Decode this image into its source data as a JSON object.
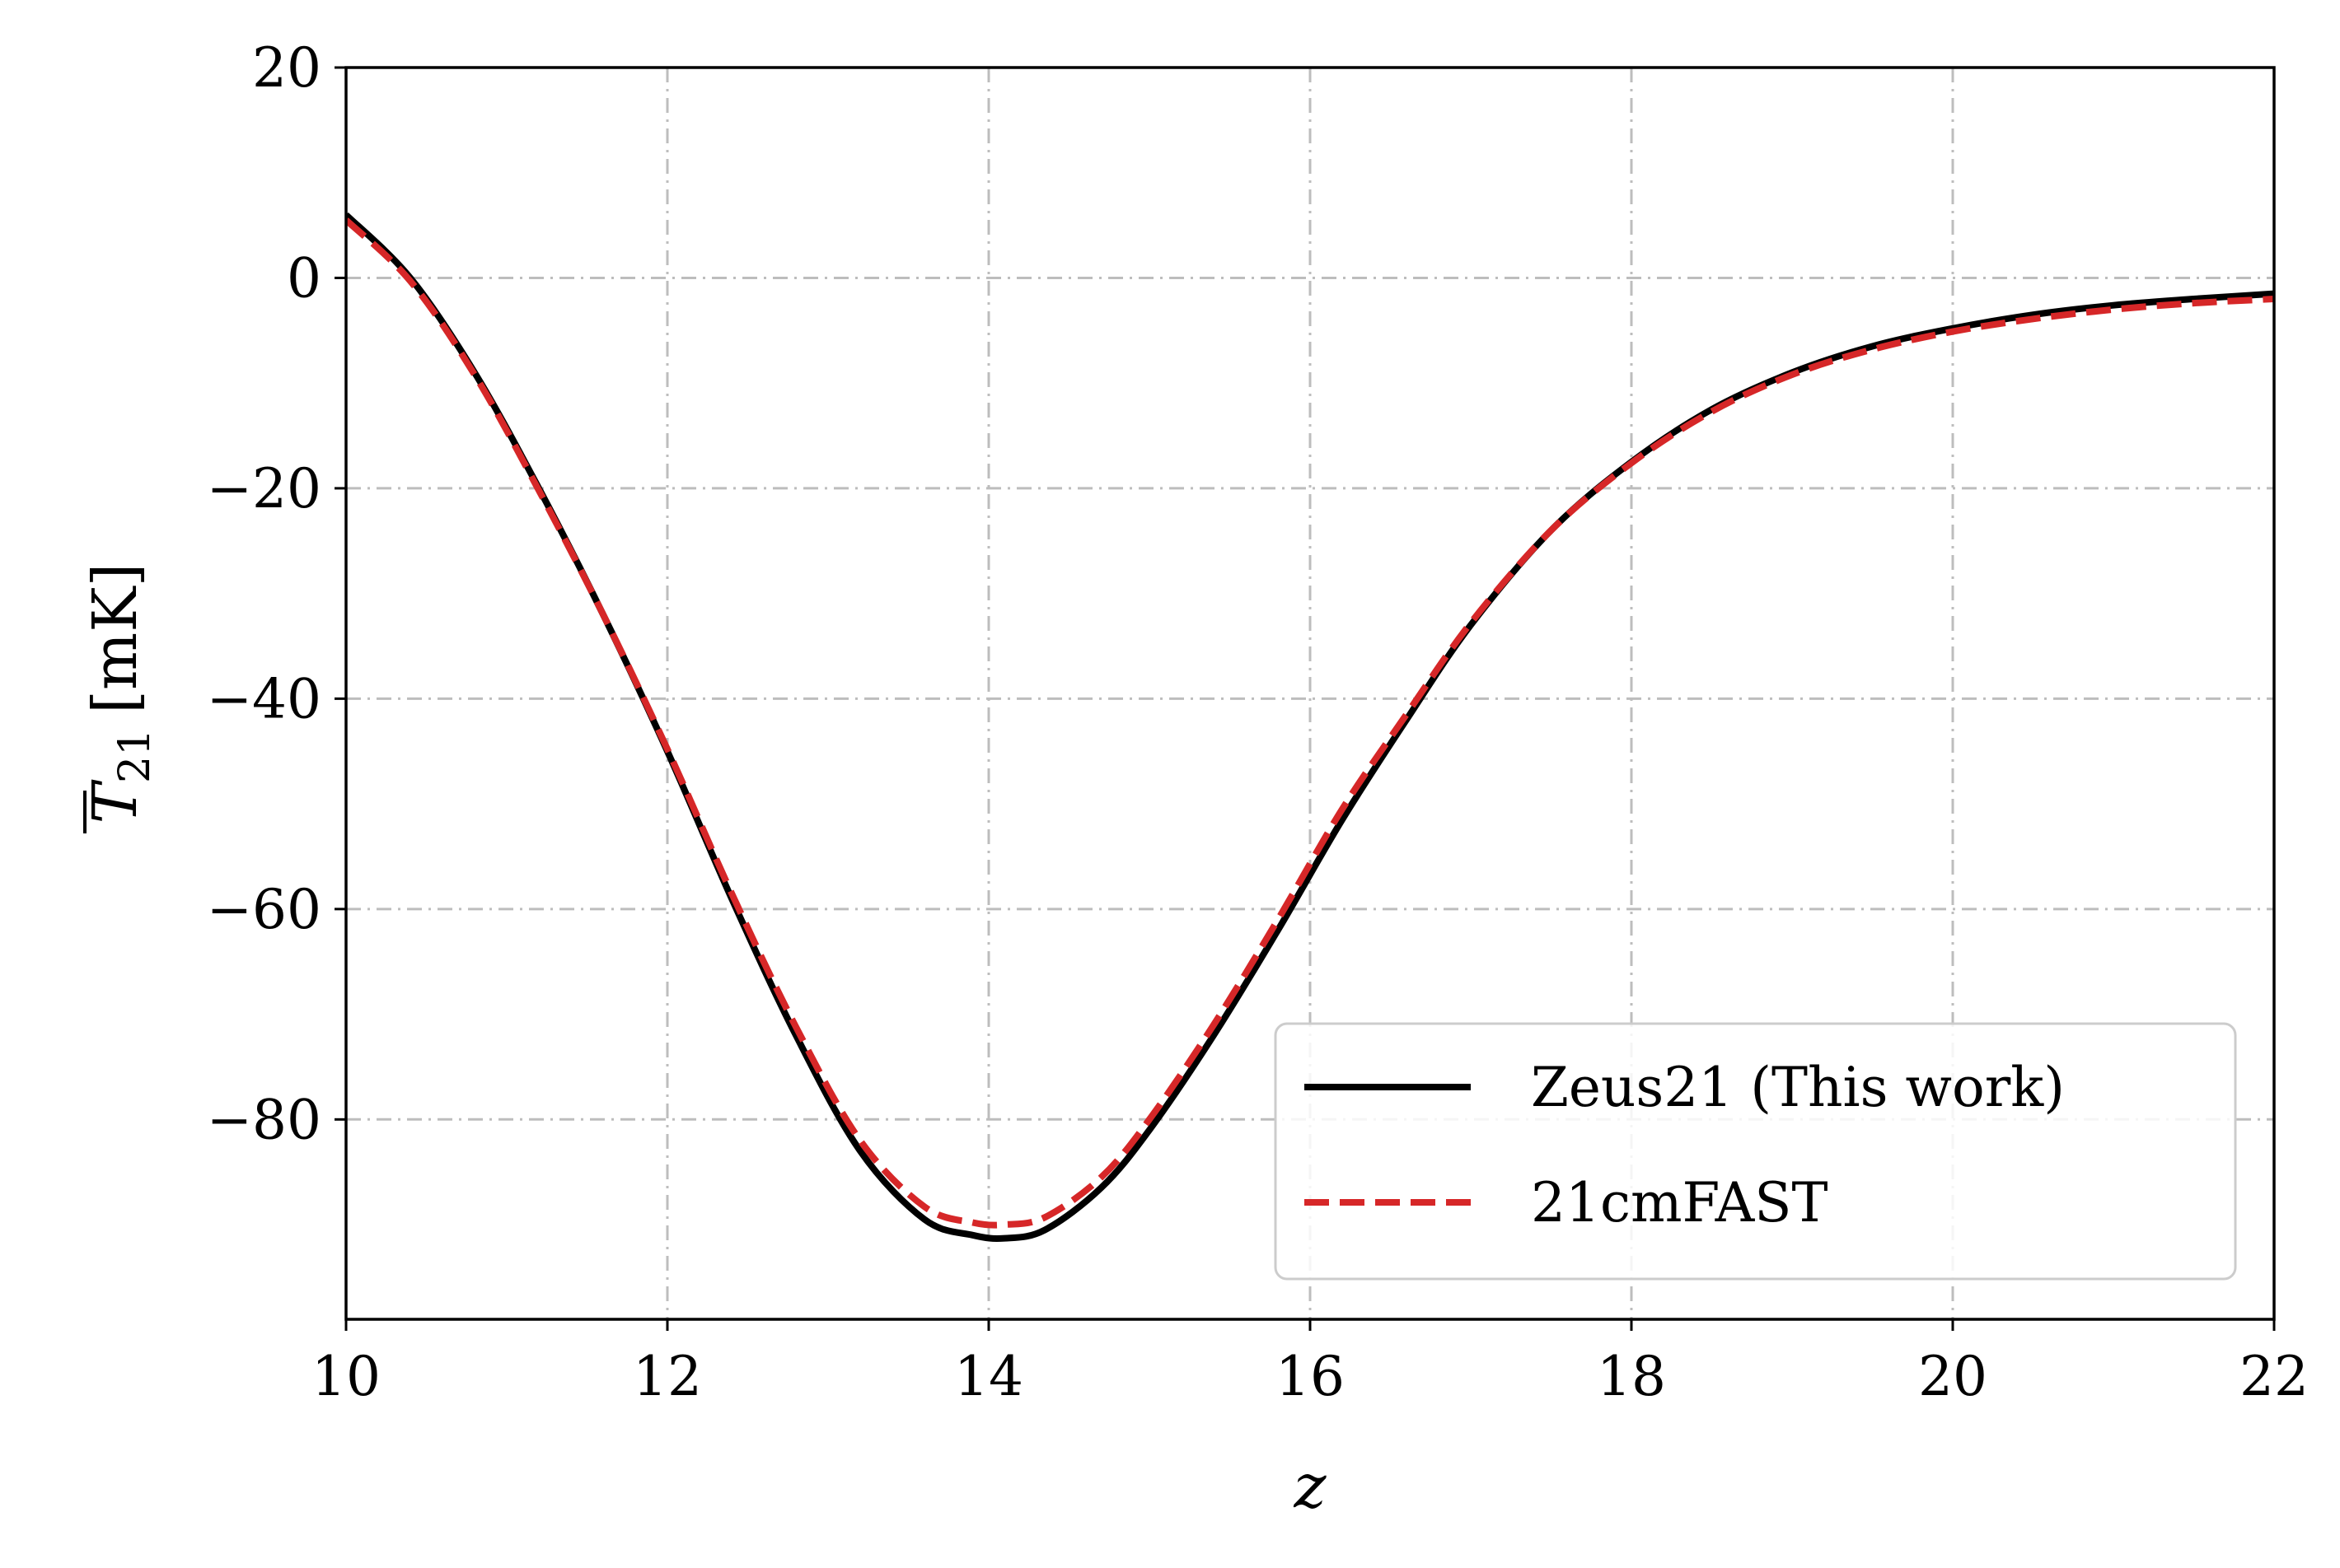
{
  "chart_data": {
    "type": "line",
    "title": "",
    "xlabel": "z",
    "ylabel_main": "T",
    "ylabel_sub": "21",
    "ylabel_unit": "[mK]",
    "xlim": [
      10,
      22
    ],
    "ylim": [
      -99,
      20
    ],
    "xticks": [
      10,
      12,
      14,
      16,
      18,
      20,
      22
    ],
    "xtick_labels": [
      "10",
      "12",
      "14",
      "16",
      "18",
      "20",
      "22"
    ],
    "yticks": [
      20,
      0,
      -20,
      -40,
      -60,
      -80
    ],
    "ytick_labels": [
      "20",
      "0",
      "−20",
      "−40",
      "−60",
      "−80"
    ],
    "grid": true,
    "legend_position": "lower-right",
    "series": [
      {
        "name": "Zeus21 (This work)",
        "color": "#000000",
        "style": "solid",
        "x": [
          10,
          10.4,
          10.8,
          11.2,
          11.6,
          12.0,
          12.4,
          12.8,
          13.2,
          13.6,
          13.9,
          14.1,
          14.35,
          14.7,
          15.0,
          15.4,
          15.8,
          16.2,
          16.6,
          17.0,
          17.5,
          18.0,
          18.5,
          19.0,
          19.5,
          20.0,
          20.5,
          21.0,
          21.5,
          22.0
        ],
        "y": [
          6,
          0,
          -9,
          -20,
          -32,
          -45,
          -59,
          -72,
          -83,
          -89.5,
          -91,
          -91.3,
          -90.5,
          -86.5,
          -81,
          -72,
          -62,
          -51.5,
          -42,
          -33,
          -24,
          -17.5,
          -12.5,
          -9,
          -6.5,
          -4.8,
          -3.5,
          -2.6,
          -2.0,
          -1.5
        ]
      },
      {
        "name": "21cmFAST",
        "color": "#d62728",
        "style": "dashed",
        "x": [
          10,
          10.4,
          10.8,
          11.2,
          11.6,
          12.0,
          12.4,
          12.8,
          13.2,
          13.6,
          13.9,
          14.1,
          14.35,
          14.7,
          15.0,
          15.4,
          15.8,
          16.2,
          16.6,
          17.0,
          17.5,
          18.0,
          18.5,
          19.0,
          19.5,
          20.0,
          20.5,
          21.0,
          21.5,
          22.0
        ],
        "y": [
          5.5,
          -0.3,
          -9.2,
          -20.2,
          -32,
          -44.8,
          -58.5,
          -71.2,
          -82,
          -88.3,
          -89.8,
          -90,
          -89.3,
          -85.5,
          -80,
          -71,
          -61,
          -50.5,
          -41.5,
          -32.8,
          -24,
          -17.6,
          -12.7,
          -9.2,
          -6.8,
          -5.1,
          -3.9,
          -3.0,
          -2.4,
          -2.0
        ]
      }
    ]
  }
}
